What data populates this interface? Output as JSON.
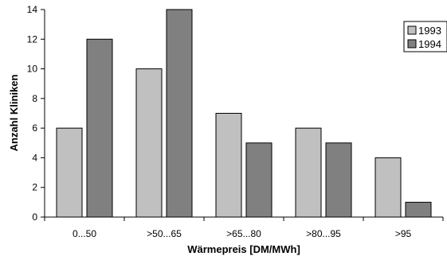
{
  "chart_data": {
    "type": "bar",
    "categories": [
      "0...50",
      ">50...65",
      ">65...80",
      ">80...95",
      ">95"
    ],
    "series": [
      {
        "name": "1993",
        "values": [
          6,
          10,
          7,
          6,
          4
        ],
        "color": "#c0c0c0"
      },
      {
        "name": "1994",
        "values": [
          12,
          14,
          5,
          5,
          1
        ],
        "color": "#808080"
      }
    ],
    "title": "",
    "xlabel": "Wärmepreis [DM/MWh]",
    "ylabel": "Anzahl Kliniken",
    "ylim": [
      0,
      14
    ],
    "yticks": [
      0,
      2,
      4,
      6,
      8,
      10,
      12,
      14
    ],
    "grid": false,
    "legend_position": "top-right"
  }
}
